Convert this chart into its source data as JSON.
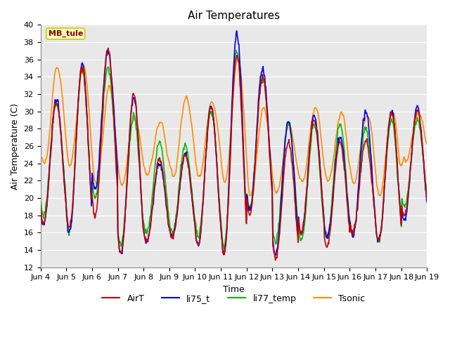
{
  "title": "Air Temperatures",
  "xlabel": "Time",
  "ylabel": "Air Temperature (C)",
  "ylim": [
    12,
    40
  ],
  "yticks": [
    12,
    14,
    16,
    18,
    20,
    22,
    24,
    26,
    28,
    30,
    32,
    34,
    36,
    38,
    40
  ],
  "annotation_text": "MB_tule",
  "annotation_text_color": "#8B0000",
  "annotation_box_color": "#FFFFC0",
  "annotation_edge_color": "#CCCC00",
  "colors": {
    "AirT": "#CC0000",
    "li75_t": "#0000EE",
    "li77_temp": "#00BB00",
    "Tsonic": "#FF8C00"
  },
  "bg_color": "#E8E8E8",
  "grid_color": "#FFFFFF",
  "line_width": 1.2,
  "n_days": 15,
  "pts_per_day": 48,
  "tick_labels": [
    "Jun 4",
    "Jun 5",
    "Jun 6",
    "Jun 7",
    "Jun 8",
    "Jun 9",
    "Jun 10",
    "Jun 11",
    "Jun 12",
    "Jun 13",
    "Jun 14",
    "Jun 15",
    "Jun 16",
    "Jun 17",
    "Jun 18",
    "Jun 19"
  ],
  "AirT_day_mins": [
    17.0,
    16.5,
    18.0,
    13.5,
    15.0,
    15.5,
    14.5,
    13.5,
    18.0,
    13.0,
    16.0,
    14.5,
    16.0,
    15.0,
    18.0
  ],
  "AirT_day_maxs": [
    31.0,
    35.0,
    37.0,
    32.0,
    24.5,
    25.0,
    30.5,
    36.5,
    34.0,
    26.5,
    29.0,
    26.5,
    26.5,
    30.0,
    30.0
  ],
  "li75_day_mins": [
    17.0,
    16.0,
    21.0,
    13.5,
    15.0,
    15.5,
    14.5,
    13.5,
    18.5,
    13.5,
    16.0,
    15.5,
    15.5,
    15.0,
    17.5
  ],
  "li75_day_maxs": [
    31.5,
    35.5,
    37.0,
    31.5,
    24.0,
    25.0,
    30.5,
    39.0,
    35.0,
    29.0,
    29.5,
    27.0,
    30.0,
    30.0,
    30.5
  ],
  "li77_day_mins": [
    18.0,
    16.0,
    20.0,
    14.5,
    16.0,
    16.0,
    15.5,
    14.5,
    19.0,
    15.0,
    15.0,
    15.5,
    16.0,
    15.0,
    19.0
  ],
  "li77_day_maxs": [
    31.0,
    35.0,
    35.0,
    29.5,
    26.5,
    26.0,
    30.0,
    37.0,
    34.0,
    28.5,
    28.5,
    28.5,
    28.0,
    29.0,
    29.0
  ],
  "Tsonic_day_mins": [
    23.5,
    23.5,
    21.5,
    21.5,
    22.5,
    22.5,
    22.0,
    21.5,
    20.0,
    20.5,
    21.5,
    21.5,
    21.5,
    20.0,
    24.0
  ],
  "Tsonic_day_maxs": [
    35.5,
    35.5,
    33.0,
    29.5,
    29.0,
    32.0,
    31.5,
    36.5,
    30.5,
    28.5,
    30.5,
    30.0,
    30.0,
    30.0,
    30.0
  ]
}
